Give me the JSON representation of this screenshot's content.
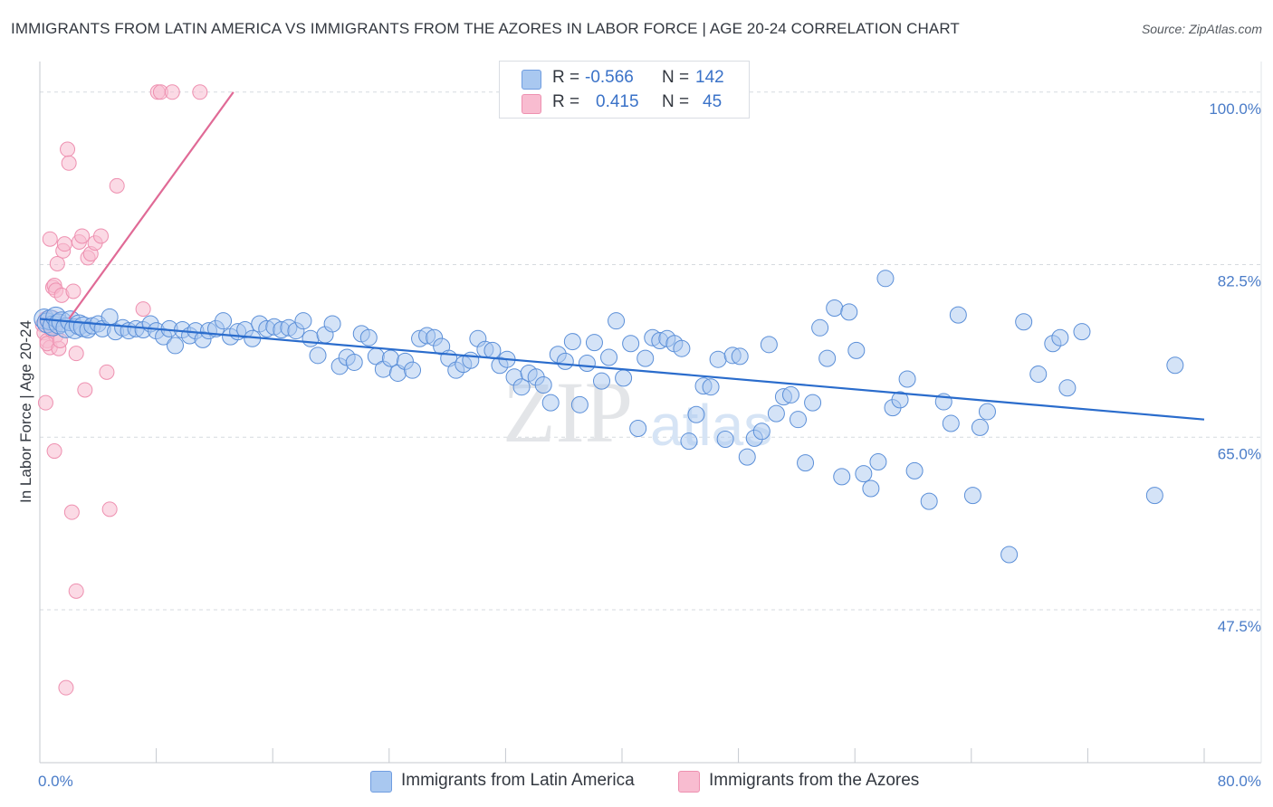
{
  "title": "IMMIGRANTS FROM LATIN AMERICA VS IMMIGRANTS FROM THE AZORES IN LABOR FORCE | AGE 20-24 CORRELATION CHART",
  "source": "Source: ZipAtlas.com",
  "watermark": {
    "zip": "ZIP",
    "atlas": "atlas"
  },
  "legend": {
    "r_label": "R =",
    "n_label": "N =",
    "rows": [
      {
        "r": "-0.566",
        "n": "142",
        "color": "#a9c8f0",
        "edge": "#6f9de0"
      },
      {
        "r": "0.415",
        "n": "45",
        "color": "#f8bcd0",
        "edge": "#ee90b0"
      }
    ]
  },
  "colors": {
    "blue_fill": "#a9c8f0",
    "blue_edge": "#5b8fd8",
    "blue_line": "#2a6ccc",
    "pink_fill": "#f8bcd0",
    "pink_edge": "#ee90b0",
    "pink_line": "#e06a96",
    "tick_text": "#4a7cc8"
  },
  "chart_data": {
    "type": "scatter",
    "ylabel": "In Labor Force | Age 20-24",
    "xlim": [
      0,
      80
    ],
    "ylim": [
      32,
      102
    ],
    "x_tick_labels": [
      {
        "value": 0,
        "label": "0.0%"
      },
      {
        "value": 80,
        "label": "80.0%"
      }
    ],
    "y_tick_labels": [
      {
        "value": 100,
        "label": "100.0%"
      },
      {
        "value": 82.5,
        "label": "82.5%"
      },
      {
        "value": 65,
        "label": "65.0%"
      },
      {
        "value": 47.5,
        "label": "47.5%"
      }
    ],
    "series": [
      {
        "name": "Immigrants from Latin America",
        "trend": {
          "x": [
            0,
            80
          ],
          "y": [
            77.0,
            66.8
          ]
        },
        "points": [
          [
            0.3,
            77.0
          ],
          [
            0.5,
            76.6
          ],
          [
            0.7,
            76.9
          ],
          [
            0.9,
            76.3
          ],
          [
            1.1,
            77.2
          ],
          [
            1.3,
            76.5
          ],
          [
            1.5,
            76.7
          ],
          [
            1.8,
            76.1
          ],
          [
            2.1,
            76.8
          ],
          [
            2.4,
            76.0
          ],
          [
            2.7,
            76.4
          ],
          [
            3.0,
            76.2
          ],
          [
            3.3,
            75.9
          ],
          [
            3.6,
            76.3
          ],
          [
            4.0,
            76.5
          ],
          [
            4.3,
            76.0
          ],
          [
            4.8,
            77.2
          ],
          [
            5.2,
            75.7
          ],
          [
            5.7,
            76.1
          ],
          [
            6.1,
            75.8
          ],
          [
            6.6,
            76.0
          ],
          [
            7.1,
            75.9
          ],
          [
            7.6,
            76.5
          ],
          [
            8.0,
            75.8
          ],
          [
            8.5,
            75.2
          ],
          [
            8.9,
            76.0
          ],
          [
            9.3,
            74.3
          ],
          [
            9.8,
            75.9
          ],
          [
            10.3,
            75.3
          ],
          [
            10.7,
            75.8
          ],
          [
            11.2,
            74.9
          ],
          [
            11.6,
            75.8
          ],
          [
            12.1,
            76.0
          ],
          [
            12.6,
            76.8
          ],
          [
            13.1,
            75.2
          ],
          [
            13.6,
            75.7
          ],
          [
            14.1,
            75.9
          ],
          [
            14.6,
            75.0
          ],
          [
            15.1,
            76.5
          ],
          [
            15.6,
            76.0
          ],
          [
            16.1,
            76.2
          ],
          [
            16.6,
            75.9
          ],
          [
            17.1,
            76.1
          ],
          [
            17.6,
            75.8
          ],
          [
            18.1,
            76.8
          ],
          [
            18.6,
            75.0
          ],
          [
            19.1,
            73.3
          ],
          [
            19.6,
            75.4
          ],
          [
            20.1,
            76.5
          ],
          [
            20.6,
            72.2
          ],
          [
            21.1,
            73.1
          ],
          [
            21.6,
            72.6
          ],
          [
            22.1,
            75.5
          ],
          [
            22.6,
            75.1
          ],
          [
            23.1,
            73.2
          ],
          [
            23.6,
            71.9
          ],
          [
            24.1,
            73.0
          ],
          [
            24.6,
            71.5
          ],
          [
            25.1,
            72.7
          ],
          [
            25.6,
            71.8
          ],
          [
            26.1,
            75.0
          ],
          [
            26.6,
            75.3
          ],
          [
            27.1,
            75.1
          ],
          [
            27.6,
            74.2
          ],
          [
            28.1,
            73.0
          ],
          [
            28.6,
            71.8
          ],
          [
            29.1,
            72.4
          ],
          [
            29.6,
            72.8
          ],
          [
            30.1,
            75.0
          ],
          [
            30.6,
            73.9
          ],
          [
            31.1,
            73.8
          ],
          [
            31.6,
            72.3
          ],
          [
            32.1,
            72.9
          ],
          [
            32.6,
            71.1
          ],
          [
            33.1,
            70.1
          ],
          [
            33.6,
            71.5
          ],
          [
            34.1,
            71.1
          ],
          [
            34.6,
            70.3
          ],
          [
            35.1,
            68.5
          ],
          [
            35.6,
            73.4
          ],
          [
            36.1,
            72.7
          ],
          [
            36.6,
            74.7
          ],
          [
            37.1,
            68.3
          ],
          [
            37.6,
            72.5
          ],
          [
            38.1,
            74.6
          ],
          [
            38.6,
            70.7
          ],
          [
            39.1,
            73.1
          ],
          [
            39.6,
            76.8
          ],
          [
            40.1,
            71.0
          ],
          [
            40.6,
            74.5
          ],
          [
            41.1,
            65.9
          ],
          [
            41.6,
            73.0
          ],
          [
            42.1,
            75.1
          ],
          [
            42.6,
            74.8
          ],
          [
            43.1,
            75.0
          ],
          [
            43.6,
            74.5
          ],
          [
            44.1,
            74.0
          ],
          [
            44.6,
            64.6
          ],
          [
            45.1,
            67.3
          ],
          [
            45.6,
            70.2
          ],
          [
            46.1,
            70.1
          ],
          [
            46.6,
            72.9
          ],
          [
            47.1,
            64.8
          ],
          [
            47.6,
            73.3
          ],
          [
            48.1,
            73.2
          ],
          [
            48.6,
            63.0
          ],
          [
            49.1,
            64.9
          ],
          [
            49.6,
            65.6
          ],
          [
            50.1,
            74.4
          ],
          [
            50.6,
            67.4
          ],
          [
            51.1,
            69.1
          ],
          [
            51.6,
            69.3
          ],
          [
            52.1,
            66.8
          ],
          [
            52.6,
            62.4
          ],
          [
            53.1,
            68.5
          ],
          [
            53.6,
            76.1
          ],
          [
            54.1,
            73.0
          ],
          [
            54.6,
            78.1
          ],
          [
            55.1,
            61.0
          ],
          [
            55.6,
            77.7
          ],
          [
            56.1,
            73.8
          ],
          [
            56.6,
            61.3
          ],
          [
            57.1,
            59.8
          ],
          [
            57.6,
            62.5
          ],
          [
            58.1,
            81.1
          ],
          [
            58.6,
            68.0
          ],
          [
            59.1,
            68.8
          ],
          [
            59.6,
            70.9
          ],
          [
            60.1,
            61.6
          ],
          [
            61.1,
            58.5
          ],
          [
            62.1,
            68.6
          ],
          [
            62.6,
            66.4
          ],
          [
            63.1,
            77.4
          ],
          [
            64.1,
            59.1
          ],
          [
            64.6,
            66.0
          ],
          [
            65.1,
            67.6
          ],
          [
            66.6,
            53.1
          ],
          [
            67.6,
            76.7
          ],
          [
            68.6,
            71.4
          ],
          [
            69.6,
            74.5
          ],
          [
            70.1,
            75.1
          ],
          [
            70.6,
            70.0
          ],
          [
            71.6,
            75.7
          ],
          [
            76.6,
            59.1
          ],
          [
            78.0,
            72.3
          ]
        ]
      },
      {
        "name": "Immigrants from the Azores",
        "trend": {
          "x": [
            2.0,
            13.3
          ],
          "y": [
            77.0,
            100.0
          ]
        },
        "points": [
          [
            0.2,
            76.4
          ],
          [
            0.3,
            75.6
          ],
          [
            0.4,
            77.0
          ],
          [
            0.5,
            74.8
          ],
          [
            0.6,
            76.6
          ],
          [
            0.7,
            74.1
          ],
          [
            0.8,
            75.9
          ],
          [
            0.9,
            77.1
          ],
          [
            1.0,
            76.2
          ],
          [
            1.1,
            75.3
          ],
          [
            0.4,
            68.5
          ],
          [
            0.5,
            74.5
          ],
          [
            0.7,
            85.1
          ],
          [
            0.9,
            80.2
          ],
          [
            1.0,
            80.4
          ],
          [
            1.1,
            79.9
          ],
          [
            1.2,
            82.6
          ],
          [
            1.3,
            74.0
          ],
          [
            1.4,
            74.8
          ],
          [
            1.5,
            79.4
          ],
          [
            1.6,
            83.9
          ],
          [
            1.7,
            84.6
          ],
          [
            1.9,
            94.2
          ],
          [
            2.0,
            92.8
          ],
          [
            2.3,
            79.8
          ],
          [
            2.5,
            73.5
          ],
          [
            2.7,
            84.8
          ],
          [
            2.9,
            85.4
          ],
          [
            3.1,
            69.8
          ],
          [
            3.3,
            83.2
          ],
          [
            3.5,
            83.6
          ],
          [
            1.0,
            63.6
          ],
          [
            2.2,
            57.4
          ],
          [
            2.5,
            49.4
          ],
          [
            1.8,
            39.6
          ],
          [
            3.8,
            84.7
          ],
          [
            4.2,
            85.4
          ],
          [
            4.6,
            71.6
          ],
          [
            4.8,
            57.7
          ],
          [
            5.3,
            90.5
          ],
          [
            7.1,
            78.0
          ],
          [
            8.1,
            100.0
          ],
          [
            8.3,
            100.0
          ],
          [
            9.1,
            100.0
          ],
          [
            11.0,
            100.0
          ]
        ]
      }
    ]
  }
}
